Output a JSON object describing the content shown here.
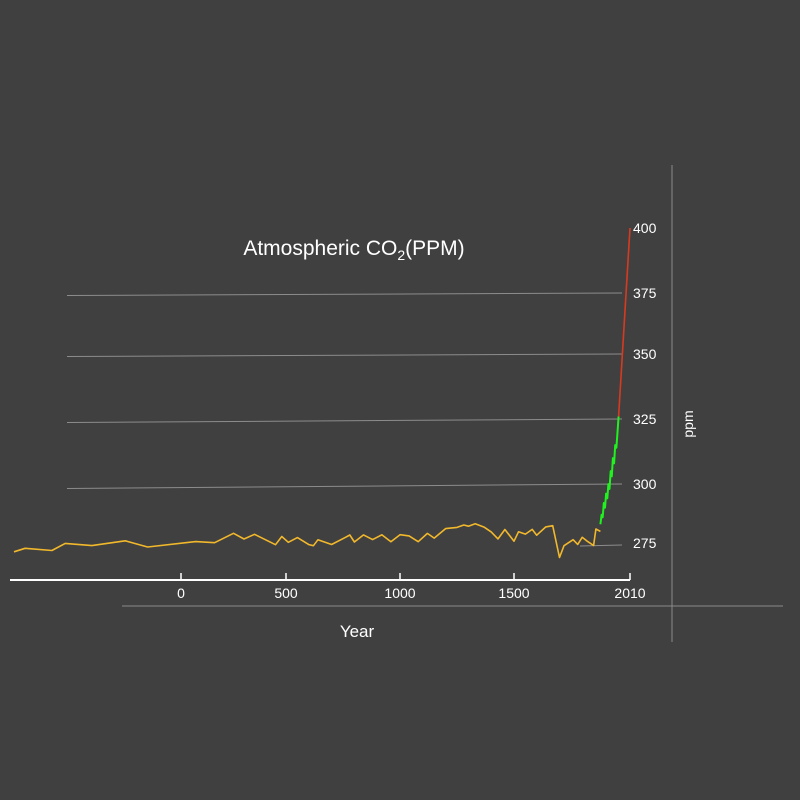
{
  "chart_data": {
    "type": "line",
    "title": "Atmospheric CO",
    "title_subscript": "2",
    "title_suffix": "(PPM)",
    "xlabel": "Year",
    "ylabel": "ppm",
    "xlim": [
      -750,
      2010
    ],
    "ylim": [
      265,
      420
    ],
    "x_ticks": [
      0,
      500,
      1000,
      1500,
      2010
    ],
    "y_ticks": [
      275,
      300,
      325,
      350,
      375,
      400
    ],
    "grid": true,
    "series": [
      {
        "color": "#f2b82c",
        "x": [
          -750,
          -700,
          -580,
          -520,
          -400,
          -250,
          -150,
          70,
          160,
          250,
          300,
          350,
          450,
          480,
          510,
          550,
          600,
          620,
          640,
          700,
          760,
          780,
          800,
          840,
          880,
          920,
          960,
          1000,
          1040,
          1080,
          1120,
          1150,
          1200,
          1250,
          1280,
          1300,
          1330,
          1370,
          1400,
          1430,
          1460,
          1500,
          1520,
          1550,
          1580,
          1600,
          1640,
          1670,
          1700,
          1720,
          1760,
          1780,
          1800,
          1820,
          1850,
          1860,
          1880
        ],
        "values": [
          272.5,
          274,
          273,
          276,
          275,
          277,
          274.3,
          276.5,
          276,
          280,
          277.5,
          279.5,
          275,
          278.5,
          276,
          278,
          275,
          274.5,
          277,
          275,
          278,
          279,
          276,
          279,
          277,
          279,
          276,
          279,
          278.5,
          276,
          279.5,
          277.5,
          281.5,
          282,
          283,
          282.5,
          283.5,
          282,
          280,
          277,
          281,
          276,
          280,
          279,
          281,
          278.5,
          282,
          282.5,
          269,
          274,
          276.5,
          274.5,
          277.5,
          276,
          274,
          281,
          280
        ]
      },
      {
        "color": "#1ff21f",
        "x": [
          1880,
          1885,
          1890,
          1895,
          1900,
          1905,
          1910,
          1915,
          1920,
          1925,
          1930,
          1935,
          1940,
          1945,
          1950,
          1955,
          1960
        ],
        "values": [
          283,
          287,
          286,
          292,
          290,
          296,
          294,
          300,
          298,
          305,
          303,
          310,
          308,
          315,
          314,
          320,
          326
        ]
      },
      {
        "color": "#d83a20",
        "x": [
          1960,
          2010
        ],
        "values": [
          326,
          400
        ]
      }
    ]
  }
}
